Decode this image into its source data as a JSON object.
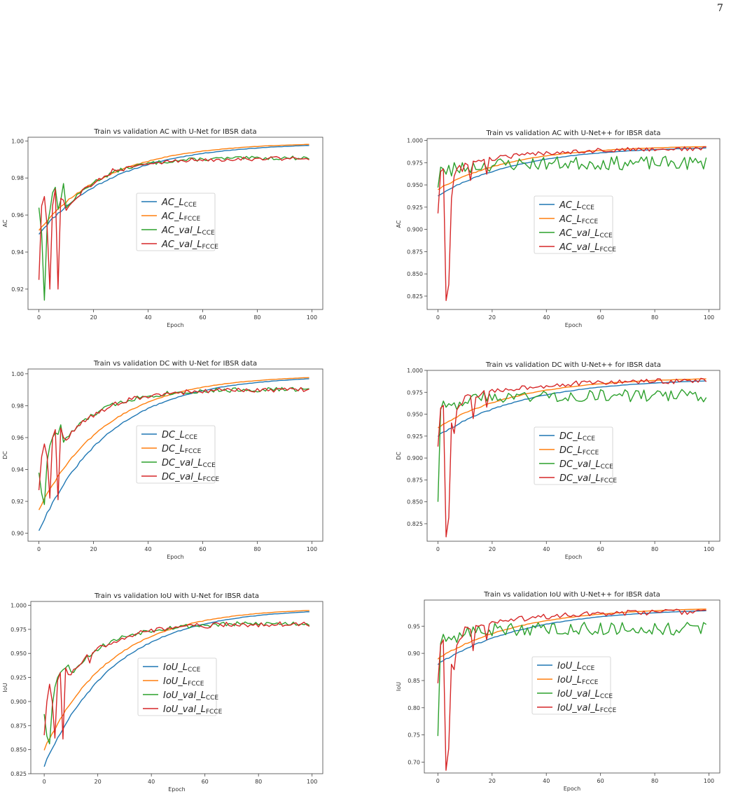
{
  "page": {
    "number": "7"
  },
  "chart_data": [
    {
      "type": "line",
      "title": "Train vs validation AC with U-Net for IBSR data",
      "xlabel": "Epoch",
      "ylabel": "AC",
      "xlim": [
        -4,
        104
      ],
      "ylim": [
        0.909,
        1.002
      ],
      "xticks": [
        0,
        20,
        40,
        60,
        80,
        100
      ],
      "yticks": [
        0.92,
        0.94,
        0.96,
        0.98,
        1.0
      ],
      "ytick_labels": [
        "0.92",
        "0.94",
        "0.96",
        "0.98",
        "1.00"
      ],
      "legend": {
        "position": "center",
        "entries": [
          {
            "base": "AC_",
            "L": "L",
            "sub": "CCE"
          },
          {
            "base": "AC_",
            "L": "L",
            "sub": "FCCE"
          },
          {
            "base": "AC_val_",
            "L": "L",
            "sub": "CCE"
          },
          {
            "base": "AC_val_",
            "L": "L",
            "sub": "FCCE"
          }
        ]
      },
      "series": [
        {
          "color": "#1f77b4",
          "gen": {
            "kind": "train",
            "start": 0.95,
            "end": 0.999,
            "tau": 28,
            "noise": 0.0007,
            "seed": 11
          }
        },
        {
          "color": "#ff7f0e",
          "gen": {
            "kind": "train",
            "start": 0.952,
            "end": 0.9992,
            "tau": 26,
            "noise": 0.0006,
            "seed": 12
          }
        },
        {
          "color": "#2ca02c",
          "gen": {
            "kind": "val",
            "start": 0.935,
            "end": 0.991,
            "tau": 14,
            "noise": 0.001,
            "seed": 13,
            "early": [
              0.964,
              0.95,
              0.914,
              0.954,
              0.962,
              0.972,
              0.975,
              0.963,
              0.968,
              0.977
            ]
          }
        },
        {
          "color": "#d62728",
          "gen": {
            "kind": "val",
            "start": 0.935,
            "end": 0.9908,
            "tau": 14,
            "noise": 0.0012,
            "seed": 14,
            "early": [
              0.925,
              0.965,
              0.97,
              0.954,
              0.92,
              0.965,
              0.974,
              0.92,
              0.969,
              0.968
            ],
            "dips": {
              "17": 0.975,
              "27": 0.985
            }
          }
        }
      ]
    },
    {
      "type": "line",
      "title": "Train vs validation AC with U-Net++ for IBSR data",
      "xlabel": "Epoch",
      "ylabel": "AC",
      "xlim": [
        -4,
        104
      ],
      "ylim": [
        0.81,
        1.002
      ],
      "xticks": [
        0,
        20,
        40,
        60,
        80,
        100
      ],
      "yticks": [
        0.825,
        0.85,
        0.875,
        0.9,
        0.925,
        0.95,
        0.975,
        1.0
      ],
      "ytick_labels": [
        "0.825",
        "0.850",
        "0.875",
        "0.900",
        "0.925",
        "0.950",
        "0.975",
        "1.000"
      ],
      "legend": {
        "position": "center",
        "entries": [
          {
            "base": "AC_",
            "L": "L",
            "sub": "CCE"
          },
          {
            "base": "AC_",
            "L": "L",
            "sub": "FCCE"
          },
          {
            "base": "AC_val_",
            "L": "L",
            "sub": "CCE"
          },
          {
            "base": "AC_val_",
            "L": "L",
            "sub": "FCCE"
          }
        ]
      },
      "series": [
        {
          "color": "#1f77b4",
          "gen": {
            "kind": "train",
            "start": 0.938,
            "end": 0.9935,
            "tau": 30,
            "noise": 0.0008,
            "seed": 21
          }
        },
        {
          "color": "#ff7f0e",
          "gen": {
            "kind": "train",
            "start": 0.945,
            "end": 0.9945,
            "tau": 28,
            "noise": 0.0007,
            "seed": 22
          }
        },
        {
          "color": "#2ca02c",
          "gen": {
            "kind": "valwide",
            "start": 0.962,
            "end": 0.976,
            "tau": 10,
            "noise": 0.007,
            "seed": 23,
            "early": [
              0.947,
              0.97,
              0.968,
              0.962,
              0.972,
              0.96,
              0.975,
              0.967
            ]
          }
        },
        {
          "color": "#d62728",
          "gen": {
            "kind": "val",
            "start": 0.965,
            "end": 0.9915,
            "tau": 25,
            "noise": 0.0025,
            "seed": 24,
            "early": [
              0.918,
              0.965,
              0.968,
              0.82,
              0.838,
              0.935,
              0.96,
              0.968,
              0.972,
              0.965
            ],
            "dips": {
              "12": 0.955,
              "18": 0.962
            }
          }
        }
      ]
    },
    {
      "type": "line",
      "title": "Train vs validation DC with U-Net for IBSR data",
      "xlabel": "Epoch",
      "ylabel": "DC",
      "xlim": [
        -4,
        104
      ],
      "ylim": [
        0.895,
        1.003
      ],
      "xticks": [
        0,
        20,
        40,
        60,
        80,
        100
      ],
      "yticks": [
        0.9,
        0.92,
        0.94,
        0.96,
        0.98,
        1.0
      ],
      "ytick_labels": [
        "0.90",
        "0.92",
        "0.94",
        "0.96",
        "0.98",
        "1.00"
      ],
      "legend": {
        "position": "center",
        "entries": [
          {
            "base": "DC_",
            "L": "L",
            "sub": "CCE"
          },
          {
            "base": "DC_",
            "L": "L",
            "sub": "FCCE"
          },
          {
            "base": "DC_val_",
            "L": "L",
            "sub": "CCE"
          },
          {
            "base": "DC_val_",
            "L": "L",
            "sub": "FCCE"
          }
        ]
      },
      "series": [
        {
          "color": "#1f77b4",
          "gen": {
            "kind": "train",
            "start": 0.902,
            "end": 0.999,
            "tau": 26,
            "noise": 0.0008,
            "seed": 31
          }
        },
        {
          "color": "#ff7f0e",
          "gen": {
            "kind": "train",
            "start": 0.915,
            "end": 0.9992,
            "tau": 25,
            "noise": 0.0007,
            "seed": 32
          }
        },
        {
          "color": "#2ca02c",
          "gen": {
            "kind": "val",
            "start": 0.93,
            "end": 0.9905,
            "tau": 15,
            "noise": 0.0015,
            "seed": 33,
            "early": [
              0.938,
              0.925,
              0.918,
              0.945,
              0.955,
              0.96,
              0.963,
              0.962,
              0.968
            ]
          }
        },
        {
          "color": "#d62728",
          "gen": {
            "kind": "val",
            "start": 0.93,
            "end": 0.9903,
            "tau": 15,
            "noise": 0.0015,
            "seed": 34,
            "early": [
              0.927,
              0.948,
              0.956,
              0.948,
              0.922,
              0.96,
              0.965,
              0.921,
              0.966,
              0.96
            ],
            "dips": {
              "17": 0.97
            }
          }
        }
      ]
    },
    {
      "type": "line",
      "title": "Train vs validation DC with U-Net++ for IBSR data",
      "xlabel": "Epoch",
      "ylabel": "DC",
      "xlim": [
        -4,
        104
      ],
      "ylim": [
        0.805,
        1.0
      ],
      "xticks": [
        0,
        20,
        40,
        60,
        80,
        100
      ],
      "yticks": [
        0.825,
        0.85,
        0.875,
        0.9,
        0.925,
        0.95,
        0.975,
        1.0
      ],
      "ytick_labels": [
        "0.825",
        "0.850",
        "0.875",
        "0.900",
        "0.925",
        "0.950",
        "0.975",
        "1.000"
      ],
      "legend": {
        "position": "center",
        "entries": [
          {
            "base": "DC_",
            "L": "L",
            "sub": "CCE"
          },
          {
            "base": "DC_",
            "L": "L",
            "sub": "FCCE"
          },
          {
            "base": "DC_val_",
            "L": "L",
            "sub": "CCE"
          },
          {
            "base": "DC_val_",
            "L": "L",
            "sub": "FCCE"
          }
        ]
      },
      "series": [
        {
          "color": "#1f77b4",
          "gen": {
            "kind": "train",
            "start": 0.925,
            "end": 0.991,
            "tau": 32,
            "noise": 0.001,
            "seed": 41
          }
        },
        {
          "color": "#ff7f0e",
          "gen": {
            "kind": "train",
            "start": 0.935,
            "end": 0.9925,
            "tau": 30,
            "noise": 0.0008,
            "seed": 42
          }
        },
        {
          "color": "#2ca02c",
          "gen": {
            "kind": "valwide",
            "start": 0.96,
            "end": 0.9725,
            "tau": 10,
            "noise": 0.0065,
            "seed": 43,
            "early": [
              0.85,
              0.955,
              0.965,
              0.958,
              0.962,
              0.96,
              0.963,
              0.955
            ]
          }
        },
        {
          "color": "#d62728",
          "gen": {
            "kind": "val",
            "start": 0.96,
            "end": 0.989,
            "tau": 25,
            "noise": 0.003,
            "seed": 44,
            "early": [
              0.913,
              0.957,
              0.96,
              0.81,
              0.832,
              0.94,
              0.928,
              0.955,
              0.96,
              0.962
            ],
            "dips": {
              "13": 0.945,
              "18": 0.958
            }
          }
        }
      ]
    },
    {
      "type": "line",
      "title": "Train vs validation IoU with U-Net for IBSR data",
      "xlabel": "Epoch",
      "ylabel": "IoU",
      "xlim": [
        -5,
        104
      ],
      "ylim": [
        0.825,
        1.004
      ],
      "xticks": [
        0,
        20,
        40,
        60,
        80,
        100
      ],
      "yticks": [
        0.825,
        0.85,
        0.875,
        0.9,
        0.925,
        0.95,
        0.975,
        1.0
      ],
      "ytick_labels": [
        "0.825",
        "0.850",
        "0.875",
        "0.900",
        "0.925",
        "0.950",
        "0.975",
        "1.000"
      ],
      "legend": {
        "position": "center",
        "entries": [
          {
            "base": "IoU_",
            "L": "L",
            "sub": "CCE"
          },
          {
            "base": "IoU_",
            "L": "L",
            "sub": "FCCE"
          },
          {
            "base": "IoU_val_",
            "L": "L",
            "sub": "CCE"
          },
          {
            "base": "IoU_val_",
            "L": "L",
            "sub": "FCCE"
          }
        ]
      },
      "series": [
        {
          "color": "#1f77b4",
          "gen": {
            "kind": "train",
            "start": 0.833,
            "end": 0.997,
            "tau": 26,
            "noise": 0.0015,
            "seed": 51
          }
        },
        {
          "color": "#ff7f0e",
          "gen": {
            "kind": "train",
            "start": 0.85,
            "end": 0.9975,
            "tau": 25,
            "noise": 0.0012,
            "seed": 52
          }
        },
        {
          "color": "#2ca02c",
          "gen": {
            "kind": "val",
            "start": 0.88,
            "end": 0.9815,
            "tau": 15,
            "noise": 0.0025,
            "seed": 53,
            "early": [
              0.887,
              0.864,
              0.856,
              0.895,
              0.915,
              0.925,
              0.93,
              0.933,
              0.935,
              0.938
            ]
          }
        },
        {
          "color": "#d62728",
          "gen": {
            "kind": "val",
            "start": 0.88,
            "end": 0.981,
            "tau": 15,
            "noise": 0.0028,
            "seed": 54,
            "early": [
              0.865,
              0.9,
              0.918,
              0.9,
              0.862,
              0.922,
              0.93,
              0.861,
              0.935,
              0.928
            ],
            "dips": {
              "17": 0.94
            }
          }
        }
      ]
    },
    {
      "type": "line",
      "title": "Train vs validation IoU with U-Net++ for IBSR data",
      "xlabel": "Epoch",
      "ylabel": "IoU",
      "xlim": [
        -5,
        104
      ],
      "ylim": [
        0.68,
        0.998
      ],
      "xticks": [
        0,
        20,
        40,
        60,
        80,
        100
      ],
      "yticks": [
        0.7,
        0.75,
        0.8,
        0.85,
        0.9,
        0.95
      ],
      "ytick_labels": [
        "0.70",
        "0.75",
        "0.80",
        "0.85",
        "0.90",
        "0.95"
      ],
      "legend": {
        "position": "center",
        "entries": [
          {
            "base": "IoU_",
            "L": "L",
            "sub": "CCE"
          },
          {
            "base": "IoU_",
            "L": "L",
            "sub": "FCCE"
          },
          {
            "base": "IoU_val_",
            "L": "L",
            "sub": "CCE"
          },
          {
            "base": "IoU_val_",
            "L": "L",
            "sub": "FCCE"
          }
        ]
      },
      "series": [
        {
          "color": "#1f77b4",
          "gen": {
            "kind": "train",
            "start": 0.88,
            "end": 0.983,
            "tau": 32,
            "noise": 0.0015,
            "seed": 61
          }
        },
        {
          "color": "#ff7f0e",
          "gen": {
            "kind": "train",
            "start": 0.89,
            "end": 0.985,
            "tau": 30,
            "noise": 0.0012,
            "seed": 62
          }
        },
        {
          "color": "#2ca02c",
          "gen": {
            "kind": "valwide",
            "start": 0.928,
            "end": 0.948,
            "tau": 10,
            "noise": 0.011,
            "seed": 63,
            "early": [
              0.748,
              0.918,
              0.935,
              0.922,
              0.93,
              0.925,
              0.932,
              0.92
            ]
          }
        },
        {
          "color": "#d62728",
          "gen": {
            "kind": "val",
            "start": 0.93,
            "end": 0.978,
            "tau": 25,
            "noise": 0.005,
            "seed": 64,
            "early": [
              0.845,
              0.915,
              0.925,
              0.685,
              0.725,
              0.88,
              0.87,
              0.915,
              0.925,
              0.93
            ],
            "dips": {
              "13": 0.905,
              "18": 0.925
            }
          }
        }
      ]
    }
  ]
}
